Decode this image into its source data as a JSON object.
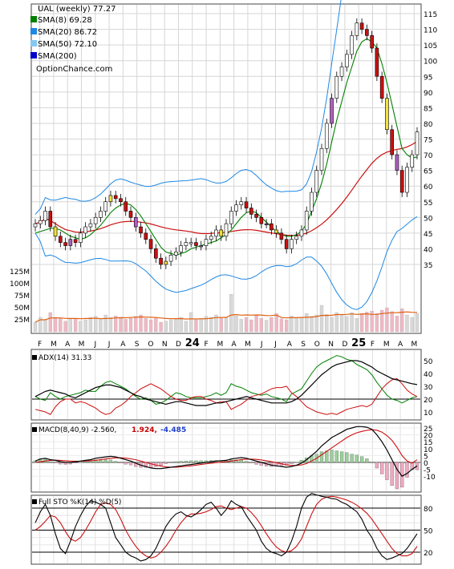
{
  "chart_data": [
    {
      "type": "candlestick",
      "panel": "price",
      "legend": [
        {
          "label": "UAL (weekly) 77.27",
          "color": "#000000",
          "swatch": false
        },
        {
          "label": "SMA(8) 69.28",
          "color": "#008000",
          "swatch": true
        },
        {
          "label": "SMA(20) 86.72",
          "color": "#1e88e5",
          "swatch": true
        },
        {
          "label": "SMA(50) 72.10",
          "color": "#87c8f0",
          "swatch": true
        },
        {
          "label": "SMA(200)",
          "color": "#0000cc",
          "swatch": true
        },
        {
          "label": "OptionChance.com",
          "color": "#000000",
          "swatch": false
        }
      ],
      "y_ticks": [
        "35",
        "40",
        "45",
        "50",
        "55",
        "60",
        "65",
        "70",
        "75",
        "80",
        "85",
        "90",
        "95",
        "100",
        "105",
        "110",
        "115"
      ],
      "volume_ticks": [
        "125M",
        "100M",
        "75M",
        "50M",
        "25M"
      ],
      "x_labels": [
        "F",
        "M",
        "A",
        "M",
        "J",
        "J",
        "A",
        "S",
        "O",
        "N",
        "D",
        "24",
        "F",
        "M",
        "A",
        "M",
        "J",
        "J",
        "A",
        "S",
        "O",
        "N",
        "D",
        "25",
        "F",
        "M",
        "A",
        "M"
      ],
      "close": [
        48,
        49,
        52,
        47,
        44,
        42,
        41,
        43,
        42,
        45,
        47,
        48,
        50,
        52,
        55,
        57,
        56,
        55,
        52,
        50,
        47,
        45,
        43,
        40,
        37,
        35,
        36,
        38,
        39,
        41,
        42,
        42,
        41,
        41,
        43,
        44,
        46,
        44,
        48,
        52,
        54,
        55,
        53,
        51,
        50,
        48,
        48,
        46,
        45,
        43,
        40,
        43,
        44,
        46,
        52,
        58,
        65,
        72,
        80,
        88,
        95,
        98,
        102,
        108,
        112,
        110,
        108,
        104,
        95,
        88,
        78,
        70,
        65,
        58,
        66,
        70,
        77.27
      ],
      "sma8": [
        45,
        45.5,
        46,
        46.5,
        46.5,
        46,
        45,
        44,
        43.5,
        43,
        43.5,
        44.5,
        46,
        47.5,
        49.5,
        51.5,
        53,
        54,
        54.5,
        54,
        52.5,
        50.5,
        48,
        45.5,
        43,
        40.5,
        39,
        38.5,
        38,
        38.5,
        39,
        40,
        40.5,
        41,
        41.5,
        42,
        42.5,
        43.5,
        44.5,
        46,
        48,
        50,
        51.5,
        52,
        51.5,
        50,
        48.5,
        47,
        45.5,
        44.5,
        44,
        44,
        44.5,
        45.5,
        48,
        52,
        56,
        61,
        67,
        74,
        81,
        87,
        93,
        98,
        103,
        106,
        107,
        106,
        104,
        99,
        93,
        86,
        79,
        72,
        70,
        69,
        69.28
      ],
      "sma20": [
        48,
        47.5,
        47,
        46.8,
        46.5,
        46.2,
        46,
        45.8,
        45.6,
        45.4,
        45.6,
        46,
        46.6,
        47.2,
        47.8,
        48.4,
        49,
        49.2,
        49,
        48.6,
        48,
        47.2,
        46.4,
        45.6,
        45,
        44.6,
        44.2,
        44,
        43.8,
        44,
        44.2,
        44.6,
        45,
        45.4,
        45.6,
        45.8,
        46,
        46.3,
        46.6,
        47,
        47.4,
        47.7,
        47.8,
        47.7,
        47.4,
        47.2,
        47,
        46.8,
        46.6,
        46.4,
        46.3,
        46.4,
        46.8,
        47.6,
        49,
        51,
        53.5,
        56.5,
        60,
        64,
        68,
        72.5,
        77,
        81,
        85,
        89,
        92,
        94,
        95,
        95,
        94,
        92,
        90,
        88,
        87,
        86.8,
        86.72
      ],
      "vol": [
        20,
        30,
        25,
        40,
        30,
        28,
        22,
        26,
        28,
        22,
        25,
        30,
        32,
        28,
        35,
        30,
        33,
        30,
        26,
        28,
        32,
        35,
        28,
        25,
        30,
        20,
        22,
        25,
        28,
        30,
        22,
        40,
        25,
        28,
        32,
        30,
        35,
        28,
        30,
        78,
        33,
        26,
        30,
        25,
        35,
        28,
        24,
        30,
        38,
        27,
        25,
        33,
        29,
        30,
        38,
        32,
        35,
        55,
        36,
        30,
        40,
        34,
        32,
        40,
        28,
        38,
        41,
        43,
        38,
        45,
        50,
        42,
        33,
        48,
        35,
        30,
        38
      ]
    },
    {
      "type": "line",
      "panel": "adx",
      "title": "ADX(14) 31.33",
      "y_ticks": [
        "50",
        "40",
        "30",
        "20",
        "10"
      ],
      "adx": [
        22,
        24,
        26,
        27,
        26,
        25,
        24,
        22,
        21,
        23,
        25,
        27,
        29,
        30,
        31,
        31,
        30,
        29,
        27,
        25,
        23,
        22,
        20,
        19,
        18,
        17,
        16,
        17,
        18,
        18,
        17,
        16,
        15,
        15,
        15,
        16,
        17,
        17,
        18,
        19,
        20,
        21,
        22,
        21,
        20,
        19,
        18,
        17,
        17,
        17,
        17,
        18,
        20,
        23,
        27,
        31,
        35,
        39,
        42,
        45,
        47,
        48,
        49,
        50,
        50,
        49,
        47,
        45,
        42,
        40,
        38,
        36,
        35,
        34,
        33,
        32,
        31.33
      ],
      "pdi": [
        22,
        20,
        19,
        25,
        22,
        20,
        22,
        23,
        24,
        25,
        27,
        26,
        26,
        30,
        33,
        34,
        32,
        30,
        28,
        25,
        22,
        20,
        21,
        19,
        16,
        17,
        19,
        22,
        25,
        24,
        22,
        21,
        21,
        21,
        22,
        23,
        25,
        23,
        25,
        32,
        30,
        29,
        27,
        25,
        24,
        23,
        24,
        22,
        21,
        20,
        18,
        24,
        26,
        28,
        34,
        40,
        45,
        48,
        50,
        52,
        54,
        53,
        51,
        50,
        47,
        45,
        43,
        39,
        33,
        28,
        23,
        20,
        19,
        17,
        19,
        21,
        22
      ],
      "mdi": [
        12,
        11,
        10,
        8,
        14,
        18,
        20,
        20,
        17,
        18,
        17,
        15,
        13,
        10,
        8,
        9,
        13,
        15,
        18,
        22,
        25,
        28,
        30,
        32,
        30,
        28,
        25,
        22,
        20,
        19,
        19,
        21,
        22,
        22,
        20,
        19,
        17,
        18,
        18,
        12,
        14,
        16,
        19,
        22,
        23,
        24,
        26,
        28,
        29,
        29,
        30,
        25,
        22,
        18,
        14,
        12,
        10,
        9,
        8,
        9,
        8,
        10,
        12,
        13,
        14,
        15,
        14,
        16,
        22,
        28,
        32,
        35,
        36,
        32,
        27,
        24,
        22
      ]
    },
    {
      "type": "line",
      "panel": "macd",
      "title": "MACD(8,40,9) -2.560,",
      "value_labels": [
        {
          "text": "1.924,",
          "color": "#cc0000"
        },
        {
          "text": "-4.485",
          "color": "#1f3fd0"
        }
      ],
      "y_ticks": [
        "25",
        "20",
        "15",
        "10",
        "5",
        "0",
        "-5",
        "-10"
      ],
      "macd": [
        1,
        2.5,
        3,
        2,
        1.5,
        0.5,
        0,
        0,
        0.5,
        1,
        1.5,
        2,
        3,
        3.5,
        4,
        4.5,
        4,
        3,
        2,
        1,
        -0.5,
        -2,
        -3,
        -4,
        -4.5,
        -4.5,
        -4,
        -3.5,
        -3,
        -2.5,
        -2,
        -1.5,
        -1,
        -0.5,
        0,
        0.5,
        1,
        1.2,
        1.5,
        2.5,
        3,
        3.5,
        3,
        2,
        1,
        0,
        -1,
        -2,
        -2.5,
        -3,
        -3.5,
        -3,
        -2,
        -0.5,
        2,
        5,
        8,
        12,
        15,
        18,
        20,
        22,
        24,
        25,
        26,
        26,
        25.5,
        24,
        20,
        15,
        9,
        2,
        -5,
        -10,
        -8,
        -5,
        -2.56
      ],
      "signal": [
        0,
        0.5,
        1,
        1.5,
        1.6,
        1.5,
        1.2,
        1,
        0.9,
        0.9,
        1,
        1.2,
        1.5,
        2,
        2.5,
        3,
        3.3,
        3.4,
        3.1,
        2.6,
        2,
        1,
        0,
        -1,
        -2,
        -2.7,
        -3.2,
        -3.5,
        -3.5,
        -3.2,
        -2.9,
        -2.5,
        -2,
        -1.5,
        -1,
        -0.6,
        -0.2,
        0.2,
        0.5,
        1,
        1.5,
        2,
        2.3,
        2.4,
        2.2,
        1.8,
        1.2,
        0.5,
        -0.2,
        -1,
        -1.8,
        -2.2,
        -2.2,
        -1.8,
        -0.8,
        1,
        3,
        5.5,
        8,
        10.5,
        13,
        15.5,
        18,
        20,
        21.5,
        22.5,
        23.3,
        23.7,
        23.4,
        22,
        19.5,
        16,
        11,
        5,
        1,
        -0.5,
        1.924
      ]
    },
    {
      "type": "line",
      "panel": "stochastic",
      "title": "Full STO %K(14) %D(5)",
      "y_ticks": [
        "80",
        "50",
        "20"
      ],
      "k": [
        60,
        75,
        85,
        70,
        45,
        25,
        18,
        35,
        55,
        70,
        82,
        90,
        88,
        85,
        80,
        60,
        40,
        30,
        20,
        15,
        12,
        8,
        10,
        15,
        25,
        40,
        55,
        65,
        72,
        75,
        70,
        68,
        72,
        78,
        85,
        88,
        80,
        70,
        78,
        90,
        85,
        82,
        70,
        60,
        50,
        35,
        25,
        20,
        18,
        15,
        20,
        35,
        55,
        80,
        95,
        100,
        98,
        96,
        95,
        93,
        92,
        88,
        85,
        80,
        75,
        65,
        50,
        40,
        25,
        15,
        10,
        12,
        15,
        18,
        25,
        35,
        45
      ],
      "d": [
        50,
        55,
        62,
        70,
        68,
        60,
        48,
        38,
        35,
        40,
        50,
        62,
        75,
        85,
        87,
        85,
        78,
        65,
        50,
        38,
        28,
        20,
        15,
        12,
        14,
        20,
        28,
        38,
        50,
        60,
        68,
        72,
        72,
        73,
        75,
        78,
        82,
        83,
        80,
        78,
        80,
        82,
        80,
        74,
        66,
        56,
        45,
        35,
        27,
        22,
        20,
        22,
        28,
        38,
        55,
        72,
        85,
        92,
        95,
        96,
        95,
        93,
        91,
        88,
        84,
        79,
        73,
        65,
        55,
        45,
        35,
        25,
        18,
        15,
        15,
        18,
        28
      ]
    }
  ]
}
